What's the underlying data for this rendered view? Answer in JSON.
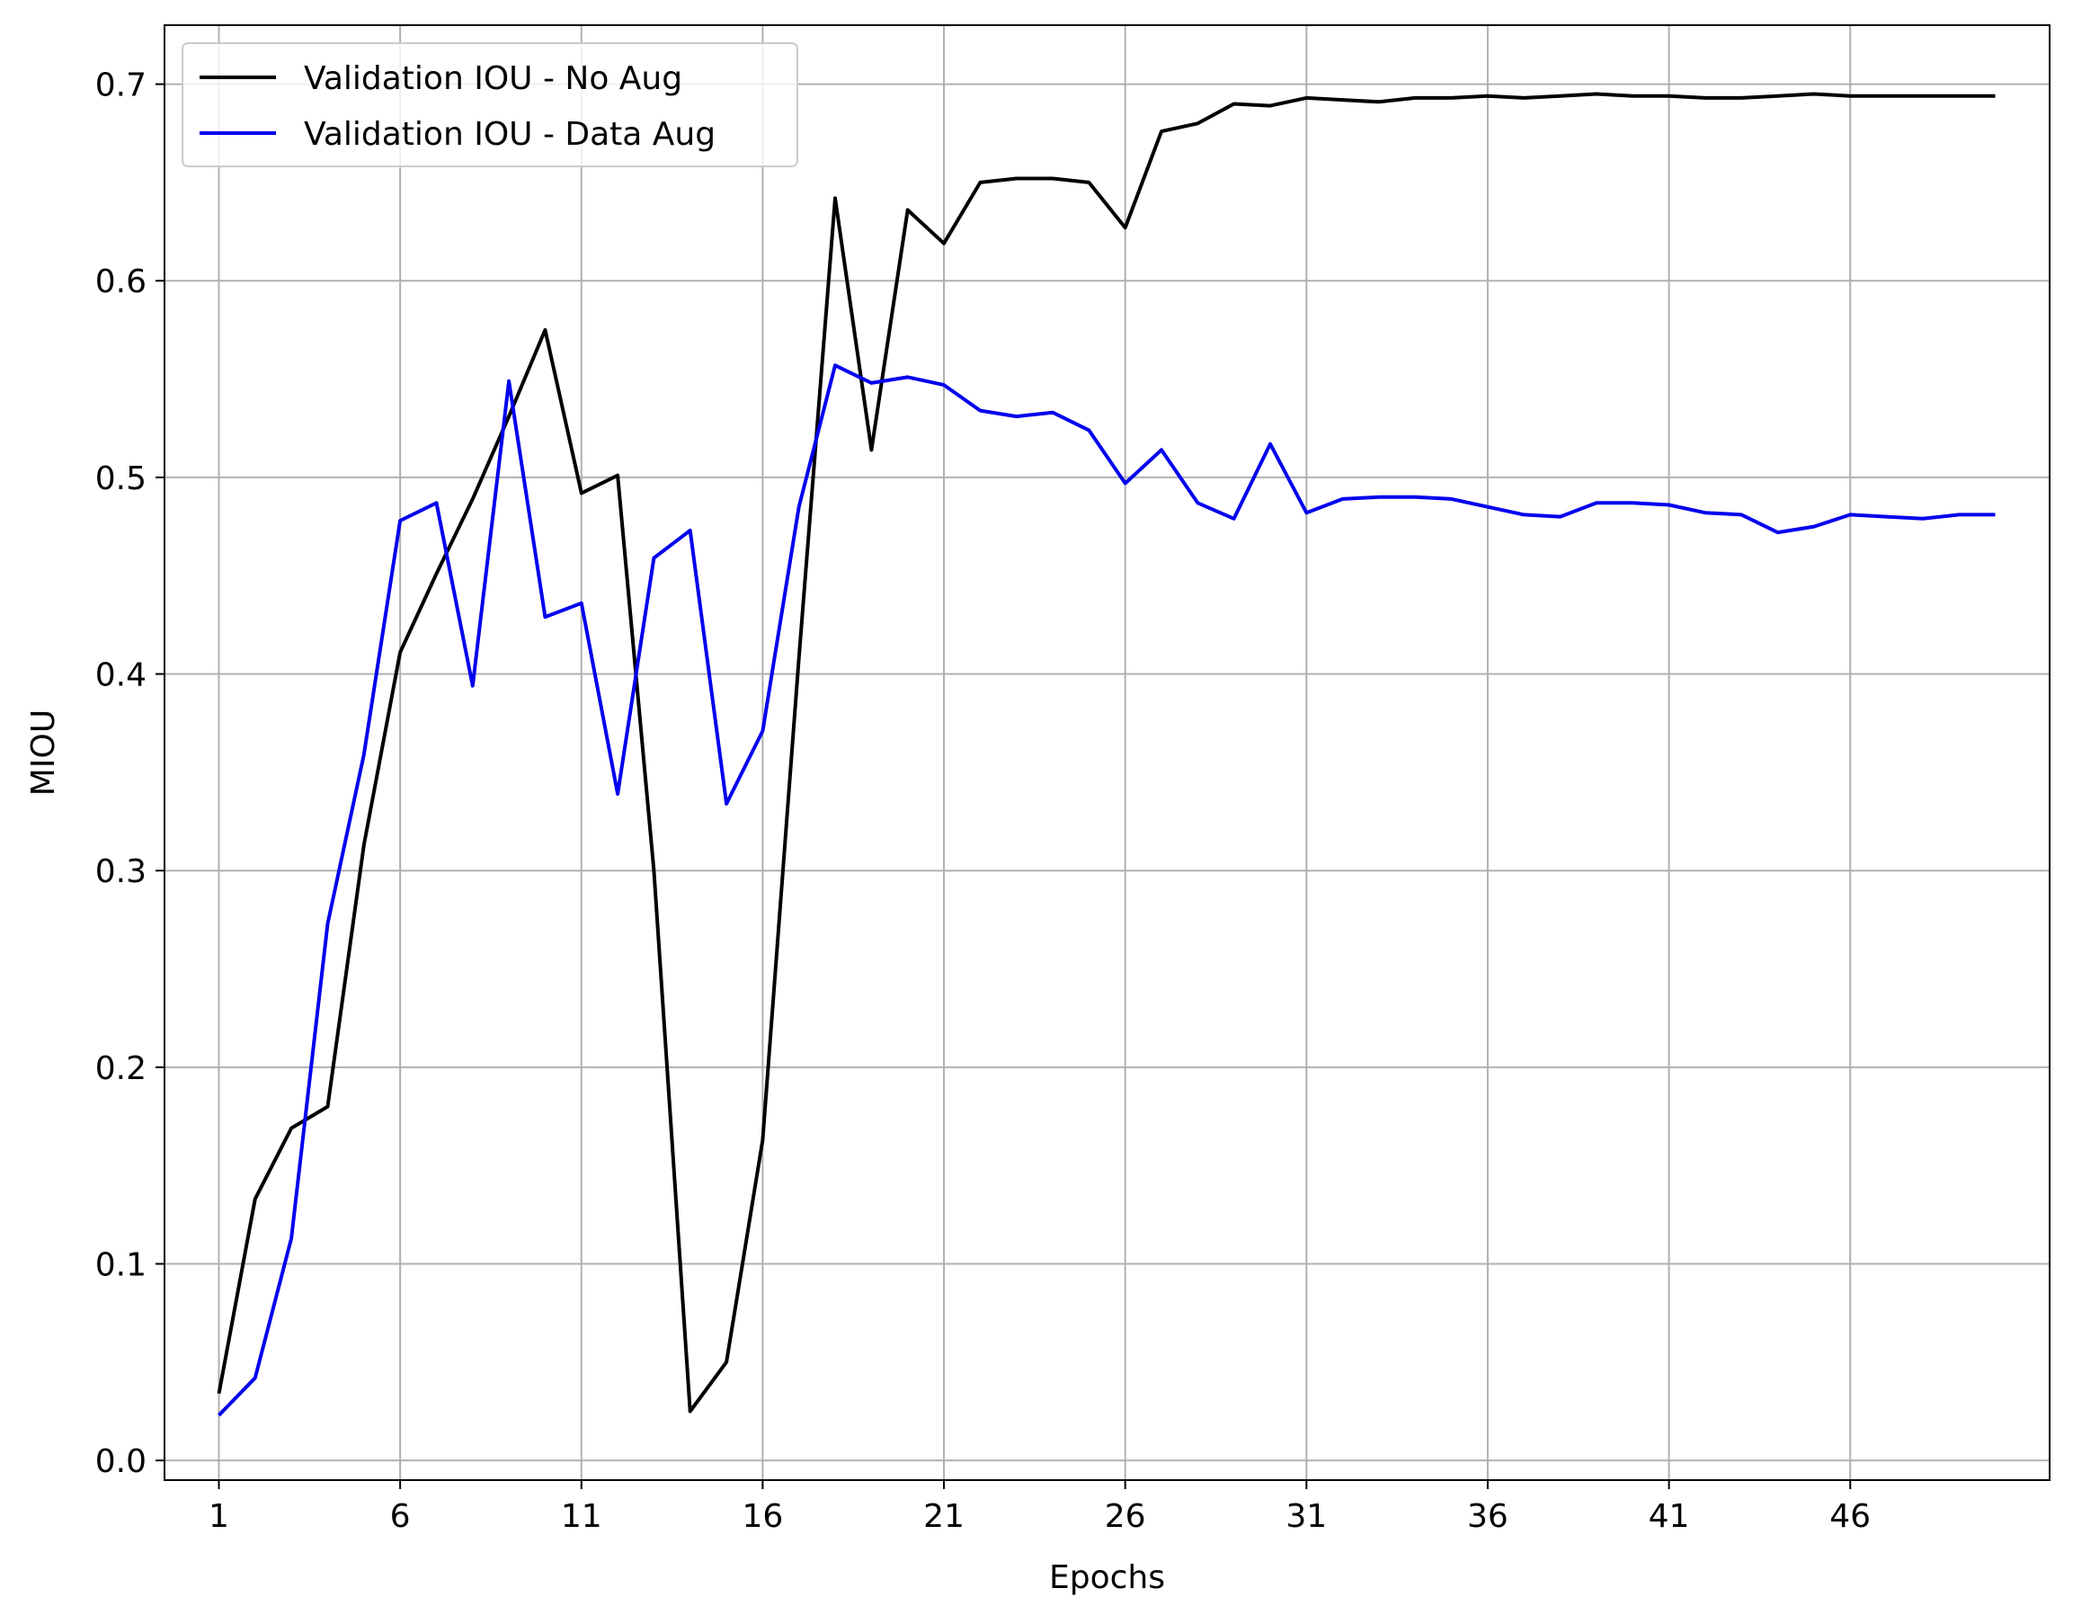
{
  "chart_data": {
    "type": "line",
    "xlabel": "Epochs",
    "ylabel": "MIOU",
    "xlim": [
      -0.5,
      51.5
    ],
    "ylim": [
      -0.01,
      0.73
    ],
    "xticks": [
      1,
      6,
      11,
      16,
      21,
      26,
      31,
      36,
      41,
      46
    ],
    "yticks": [
      0.0,
      0.1,
      0.2,
      0.3,
      0.4,
      0.5,
      0.6,
      0.7
    ],
    "ytick_labels": [
      "0.0",
      "0.1",
      "0.2",
      "0.3",
      "0.4",
      "0.5",
      "0.6",
      "0.7"
    ],
    "grid": true,
    "legend_position": "upper-left",
    "x": [
      1,
      2,
      3,
      4,
      5,
      6,
      7,
      8,
      9,
      10,
      11,
      12,
      13,
      14,
      15,
      16,
      17,
      18,
      19,
      20,
      21,
      22,
      23,
      24,
      25,
      26,
      27,
      28,
      29,
      30,
      31,
      32,
      33,
      34,
      35,
      36,
      37,
      38,
      39,
      40,
      41,
      42,
      43,
      44,
      45,
      46,
      47,
      48,
      49,
      50
    ],
    "series": [
      {
        "name": "Validation IOU - No Aug",
        "color": "#000000",
        "values": [
          0.034,
          0.133,
          0.169,
          0.18,
          0.313,
          0.411,
          0.451,
          0.489,
          0.531,
          0.575,
          0.492,
          0.501,
          0.3,
          0.025,
          0.05,
          0.163,
          0.408,
          0.642,
          0.514,
          0.636,
          0.619,
          0.65,
          0.652,
          0.652,
          0.65,
          0.627,
          0.676,
          0.68,
          0.69,
          0.689,
          0.693,
          0.692,
          0.691,
          0.693,
          0.693,
          0.694,
          0.693,
          0.694,
          0.695,
          0.694,
          0.694,
          0.693,
          0.693,
          0.694,
          0.695,
          0.694,
          0.694,
          0.694,
          0.694,
          0.694
        ]
      },
      {
        "name": "Validation IOU - Data Aug",
        "color": "#0000ee",
        "values": [
          0.023,
          0.042,
          0.113,
          0.273,
          0.359,
          0.478,
          0.487,
          0.394,
          0.549,
          0.429,
          0.436,
          0.339,
          0.459,
          0.473,
          0.334,
          0.371,
          0.485,
          0.557,
          0.548,
          0.551,
          0.547,
          0.534,
          0.531,
          0.533,
          0.524,
          0.497,
          0.514,
          0.487,
          0.479,
          0.517,
          0.482,
          0.489,
          0.49,
          0.49,
          0.489,
          0.485,
          0.481,
          0.48,
          0.487,
          0.487,
          0.486,
          0.482,
          0.481,
          0.472,
          0.475,
          0.481,
          0.48,
          0.479,
          0.481,
          0.481
        ]
      }
    ]
  }
}
